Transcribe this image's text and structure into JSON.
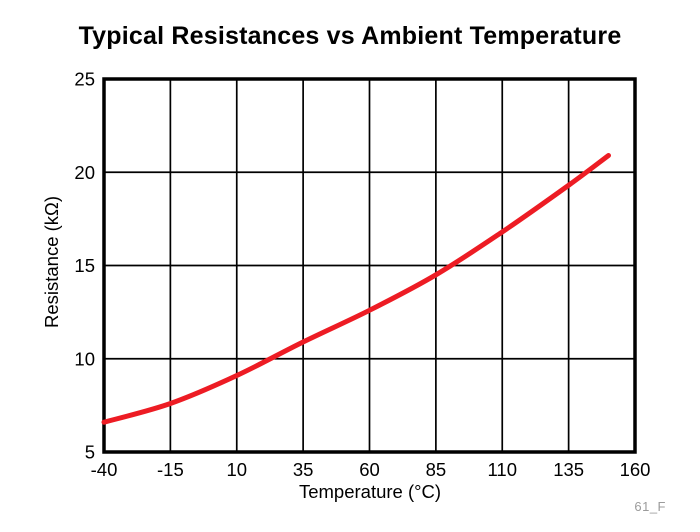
{
  "page": {
    "footnote": "61_F"
  },
  "chart_data": {
    "type": "line",
    "title": "Typical Resistances vs Ambient Temperature",
    "xlabel": "Temperature (°C)",
    "ylabel": "Resistance (kΩ)",
    "xlim": [
      -40,
      160
    ],
    "ylim": [
      5,
      25
    ],
    "xticks": [
      -40,
      -15,
      10,
      35,
      60,
      85,
      110,
      135,
      160
    ],
    "yticks": [
      5,
      10,
      15,
      20,
      25
    ],
    "grid": true,
    "legend": false,
    "series": [
      {
        "name": "Typical resistance",
        "color": "#ED1C24",
        "x": [
          -40,
          -15,
          10,
          35,
          60,
          85,
          110,
          135,
          150
        ],
        "y": [
          6.6,
          7.6,
          9.1,
          10.9,
          12.6,
          14.5,
          16.8,
          19.3,
          20.9
        ]
      }
    ],
    "colors": {
      "grid": "#000000",
      "text": "#000000",
      "footnote": "#9b9b9b"
    }
  }
}
